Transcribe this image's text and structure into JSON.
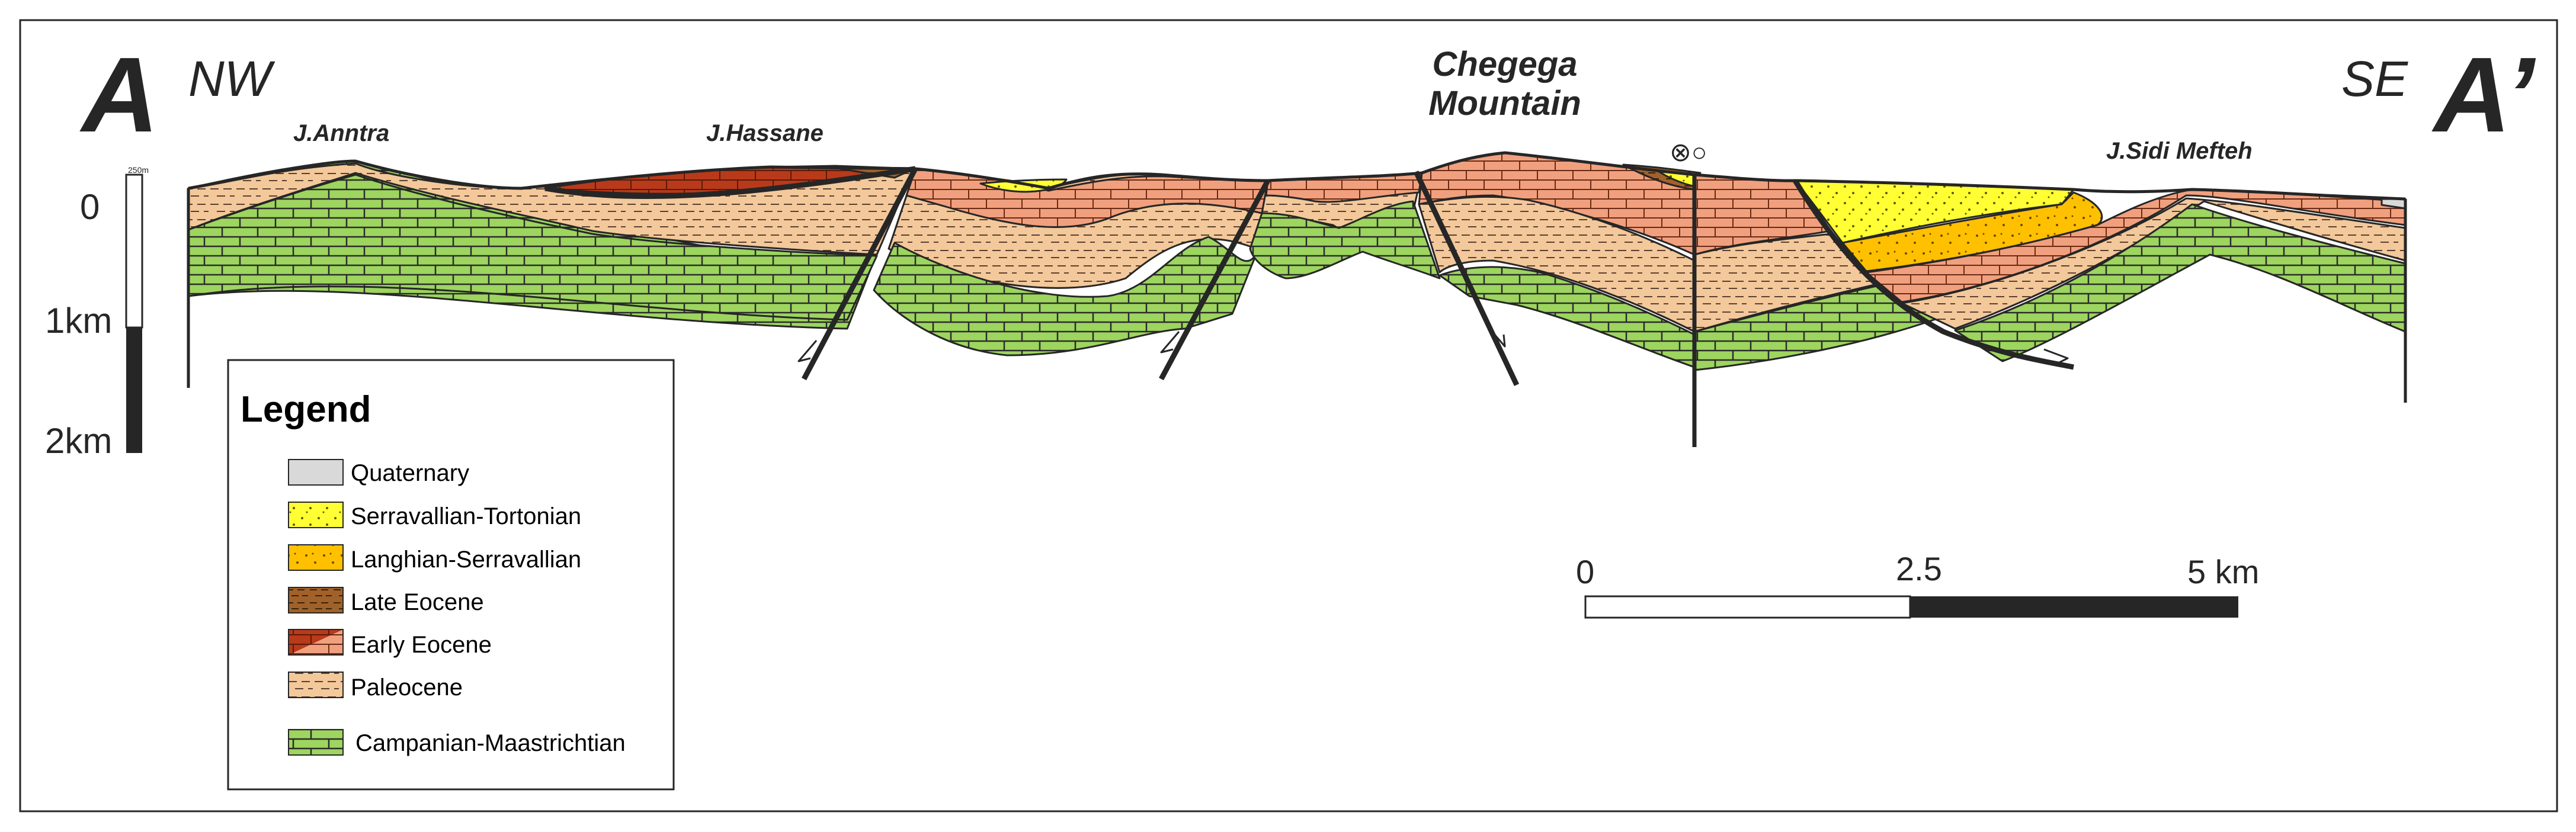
{
  "section": {
    "start_letter": "A",
    "end_letter": "A’",
    "start_direction": "NW",
    "end_direction": "SE",
    "place_names": [
      "J.Anntra",
      "J.Hassane",
      "Chegega",
      "Mountain",
      "J.Sidi Mefteh"
    ],
    "fault_symbols": "⊗○"
  },
  "vertical_scale": {
    "labels": [
      "0",
      "1km",
      "2km"
    ],
    "small_label": "250m"
  },
  "horizontal_scale": {
    "labels": [
      "0",
      "2.5",
      "5 km"
    ]
  },
  "legend": {
    "title": "Legend",
    "items": [
      {
        "label": "Quaternary",
        "color": "#d9d9d9",
        "pattern": "plain"
      },
      {
        "label": "Serravallian-Tortonian",
        "color": "#ffff33",
        "pattern": "dots"
      },
      {
        "label": "Langhian-Serravallian",
        "color": "#ffc000",
        "pattern": "dots"
      },
      {
        "label": "Late Eocene",
        "color": "#a0622a",
        "pattern": "dash"
      },
      {
        "label": "Early Eocene",
        "color": "#b83a1a",
        "pattern": "brick"
      },
      {
        "label": "Paleocene",
        "color": "#f3c89a",
        "pattern": "dash"
      },
      {
        "label": "Campanian-Maastrichtian",
        "color": "#9dd55f",
        "pattern": "brick"
      }
    ]
  },
  "colors": {
    "campanian": "#9dd55f",
    "paleocene": "#f3c89a",
    "early_eocene_dark": "#b83a1a",
    "early_eocene_light": "#f0a07e",
    "late_eocene": "#a0622a",
    "langhian": "#ffc000",
    "serravallian": "#ffff33",
    "quaternary": "#d9d9d9",
    "line": "#262626"
  }
}
